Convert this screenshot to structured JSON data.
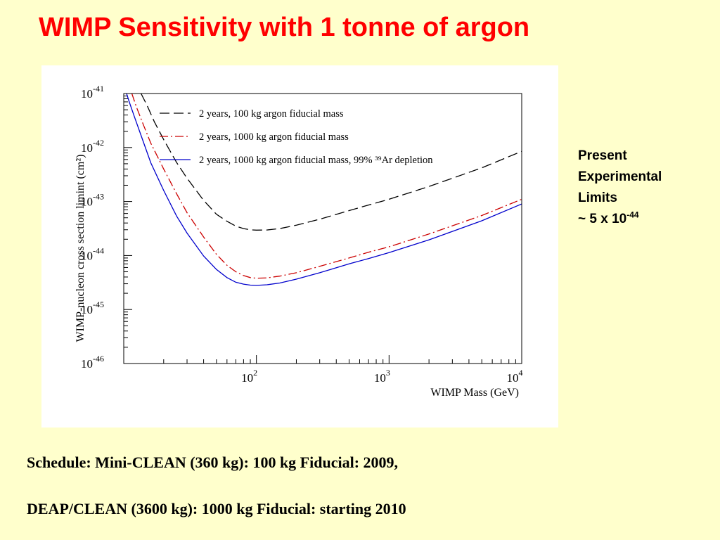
{
  "slide": {
    "title": "WIMP Sensitivity with 1 tonne of argon",
    "sidenote": {
      "lines": [
        "Present",
        "Experimental",
        "Limits"
      ],
      "value_prefix": "~ 5 x 10",
      "value_exponent": "-44"
    },
    "schedule": [
      "Schedule: Mini-CLEAN (360 kg): 100 kg Fiducial: 2009,",
      "DEAP/CLEAN (3600 kg): 1000 kg Fiducial: starting 2010"
    ]
  },
  "chart_data": {
    "type": "line",
    "title": "",
    "xlabel": "WIMP Mass (GeV)",
    "ylabel": "WIMP-nucleon cross section limint (cm²)",
    "x_scale": "log",
    "y_scale": "log",
    "xlim": [
      10,
      10000
    ],
    "ylim": [
      1e-46,
      1e-41
    ],
    "x_ticks": [
      {
        "base": "10",
        "exp": "2",
        "value": 100
      },
      {
        "base": "10",
        "exp": "3",
        "value": 1000
      },
      {
        "base": "10",
        "exp": "4",
        "value": 10000
      }
    ],
    "y_ticks": [
      {
        "base": "10",
        "exp": "-41",
        "value": 1e-41
      },
      {
        "base": "10",
        "exp": "-42",
        "value": 1e-42
      },
      {
        "base": "10",
        "exp": "-43",
        "value": 1e-43
      },
      {
        "base": "10",
        "exp": "-44",
        "value": 1e-44
      },
      {
        "base": "10",
        "exp": "-45",
        "value": 1e-45
      },
      {
        "base": "10",
        "exp": "-46",
        "value": 1e-46
      }
    ],
    "grid": false,
    "legend_position": "top",
    "series": [
      {
        "name": "2 years, 100 kg argon fiducial mass",
        "color": "#000000",
        "dash": "14,6",
        "x": [
          13.5,
          15,
          17,
          20,
          25,
          30,
          40,
          50,
          60,
          70,
          80,
          90,
          100,
          120,
          150,
          200,
          300,
          500,
          700,
          1000,
          2000,
          3000,
          5000,
          10000
        ],
        "y": [
          1e-41,
          6e-42,
          3e-42,
          1.4e-42,
          5.3e-43,
          2.7e-43,
          1.05e-43,
          5.8e-44,
          4.3e-44,
          3.5e-44,
          3.15e-44,
          3e-44,
          2.95e-44,
          2.97e-44,
          3.15e-44,
          3.65e-44,
          4.7e-44,
          6.8e-44,
          8.6e-44,
          1.1e-43,
          1.9e-43,
          2.7e-43,
          4.2e-43,
          8.5e-43
        ]
      },
      {
        "name": "2 years, 1000 kg argon fiducial mass",
        "color": "#cc0000",
        "dash": "12,4,2,4",
        "x": [
          11.5,
          12.5,
          14,
          16,
          20,
          25,
          30,
          40,
          50,
          60,
          70,
          80,
          90,
          100,
          120,
          150,
          200,
          300,
          500,
          700,
          1000,
          2000,
          3000,
          5000,
          10000
        ],
        "y": [
          1e-41,
          5.5e-42,
          2.7e-42,
          1.2e-42,
          4e-43,
          1.4e-43,
          6.2e-44,
          2.2e-44,
          1.05e-44,
          6.6e-45,
          5e-45,
          4.25e-45,
          3.9e-45,
          3.8e-45,
          3.85e-45,
          4.15e-45,
          4.8e-45,
          6.3e-45,
          9e-45,
          1.15e-44,
          1.45e-44,
          2.5e-44,
          3.55e-44,
          5.5e-44,
          1.1e-43
        ]
      },
      {
        "name": "2 years, 1000 kg argon fiducial mass, 99% ³⁹Ar depletion",
        "color": "#0000cc",
        "dash": "",
        "x": [
          10.5,
          11,
          12,
          14,
          16,
          20,
          25,
          30,
          40,
          50,
          60,
          70,
          80,
          90,
          100,
          120,
          150,
          200,
          300,
          500,
          700,
          1000,
          2000,
          3000,
          5000,
          10000
        ],
        "y": [
          1e-41,
          7e-42,
          3.8e-42,
          1.3e-42,
          5.2e-43,
          1.6e-43,
          5.4e-44,
          2.6e-44,
          9.8e-45,
          5.5e-45,
          3.9e-45,
          3.2e-45,
          2.95e-45,
          2.83e-45,
          2.8e-45,
          2.87e-45,
          3.1e-45,
          3.65e-45,
          4.8e-45,
          7e-45,
          8.8e-45,
          1.13e-44,
          1.95e-44,
          2.8e-44,
          4.4e-44,
          9e-44
        ]
      }
    ]
  }
}
